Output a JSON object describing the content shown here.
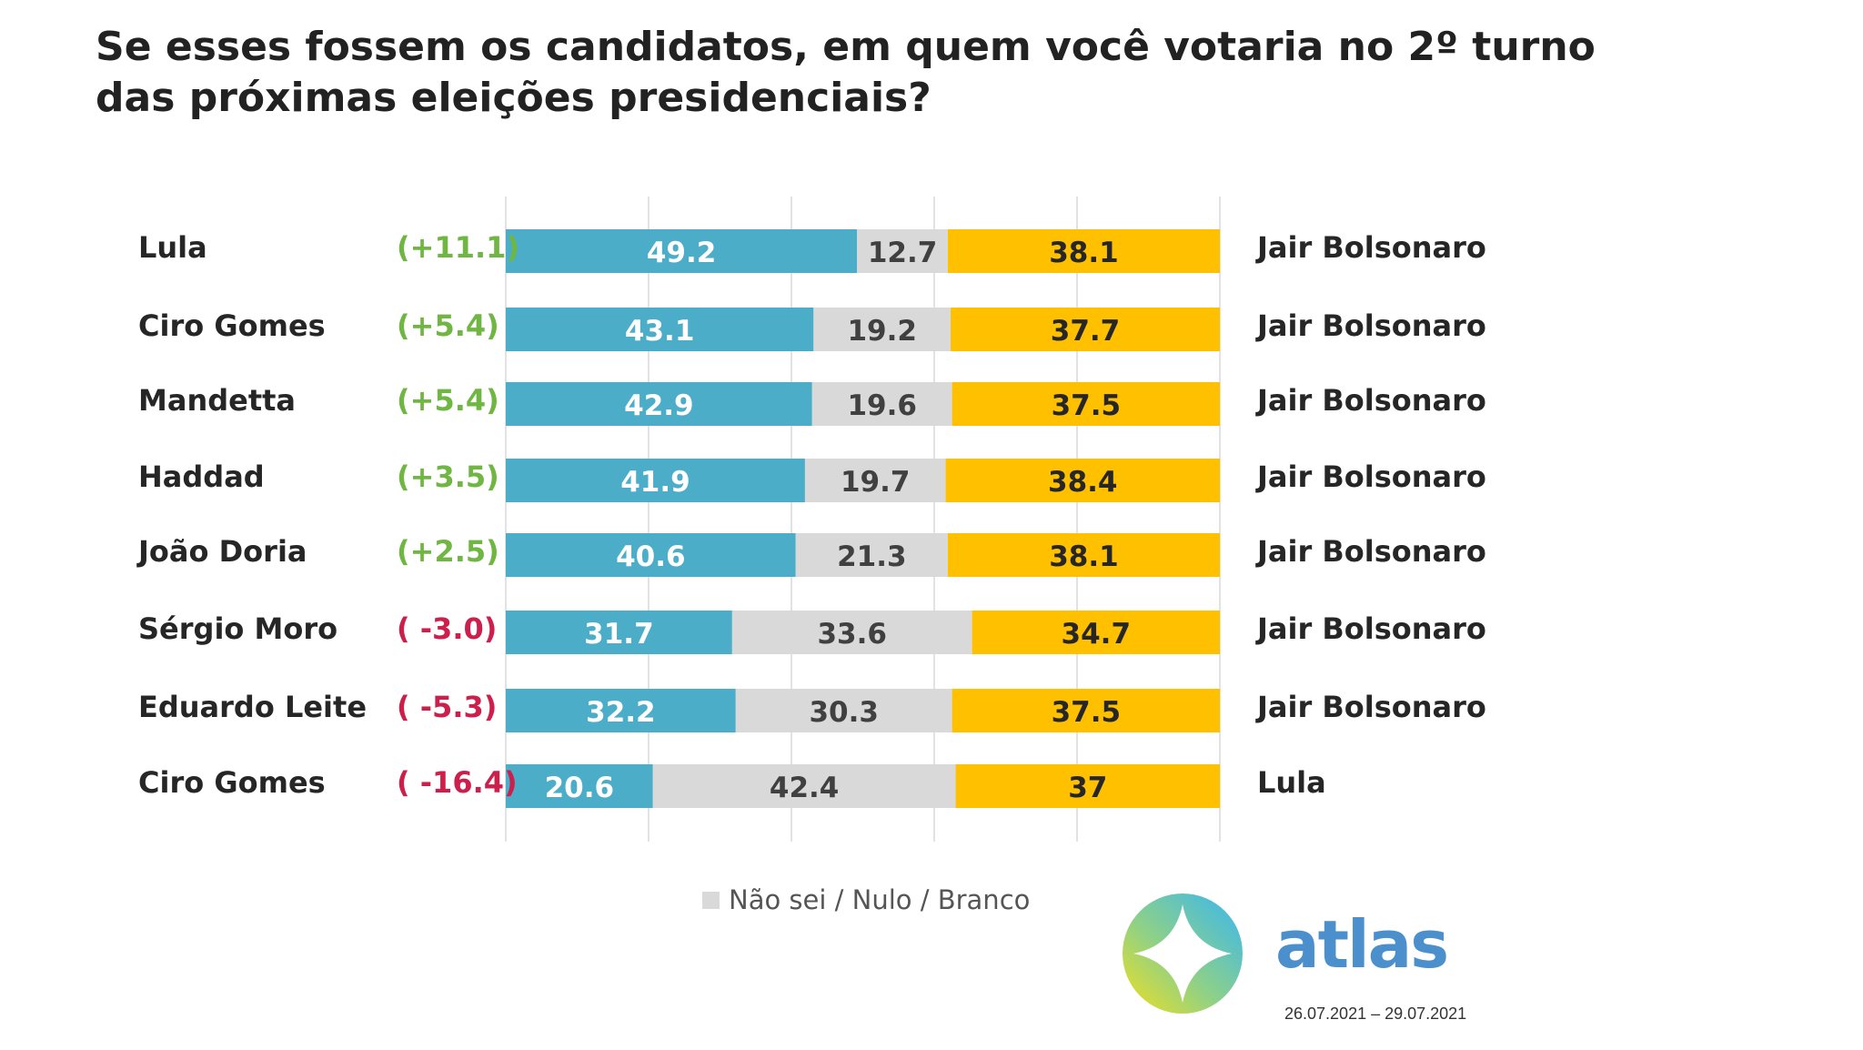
{
  "title_lines": [
    "Se esses fossem os candidatos, em quem você votaria no 2º turno",
    "das próximas eleições presidenciais?"
  ],
  "legend": {
    "label": "Não sei / Nulo / Branco"
  },
  "brand": {
    "name": "atlas",
    "date_range": "26.07.2021 – 29.07.2021"
  },
  "colors": {
    "candidate_a": "#4badc8",
    "undecided": "#d9d9d9",
    "candidate_b": "#ffc000",
    "positive_diff": "#70b643",
    "negative_diff": "#cc1f4c"
  },
  "chart_data": {
    "type": "bar",
    "stacked": true,
    "orientation": "horizontal",
    "xlim": [
      0,
      100
    ],
    "grid": true,
    "rows": [
      {
        "left": "Lula",
        "diff": "(+11.1)",
        "a": 49.2,
        "mid": 12.7,
        "b": 38.1,
        "right": "Jair Bolsonaro",
        "a_label": "49.2",
        "mid_label": "12.7",
        "b_label": "38.1"
      },
      {
        "left": "Ciro Gomes",
        "diff": "(+5.4)",
        "a": 43.1,
        "mid": 19.2,
        "b": 37.7,
        "right": "Jair Bolsonaro",
        "a_label": "43.1",
        "mid_label": "19.2",
        "b_label": "37.7"
      },
      {
        "left": "Mandetta",
        "diff": "(+5.4)",
        "a": 42.9,
        "mid": 19.6,
        "b": 37.5,
        "right": "Jair Bolsonaro",
        "a_label": "42.9",
        "mid_label": "19.6",
        "b_label": "37.5"
      },
      {
        "left": "Haddad",
        "diff": "(+3.5)",
        "a": 41.9,
        "mid": 19.7,
        "b": 38.4,
        "right": "Jair Bolsonaro",
        "a_label": "41.9",
        "mid_label": "19.7",
        "b_label": "38.4"
      },
      {
        "left": "João Doria",
        "diff": "(+2.5)",
        "a": 40.6,
        "mid": 21.3,
        "b": 38.1,
        "right": "Jair Bolsonaro",
        "a_label": "40.6",
        "mid_label": "21.3",
        "b_label": "38.1"
      },
      {
        "left": "Sérgio Moro",
        "diff": "( -3.0)",
        "a": 31.7,
        "mid": 33.6,
        "b": 34.7,
        "right": "Jair Bolsonaro",
        "a_label": "31.7",
        "mid_label": "33.6",
        "b_label": "34.7"
      },
      {
        "left": "Eduardo Leite",
        "diff": "( -5.3)",
        "a": 32.2,
        "mid": 30.3,
        "b": 37.5,
        "right": "Jair Bolsonaro",
        "a_label": "32.2",
        "mid_label": "30.3",
        "b_label": "37.5"
      },
      {
        "left": "Ciro Gomes",
        "diff": "( -16.4)",
        "a": 20.6,
        "mid": 42.4,
        "b": 37,
        "right": "Lula",
        "a_label": "20.6",
        "mid_label": "42.4",
        "b_label": "37"
      }
    ]
  }
}
